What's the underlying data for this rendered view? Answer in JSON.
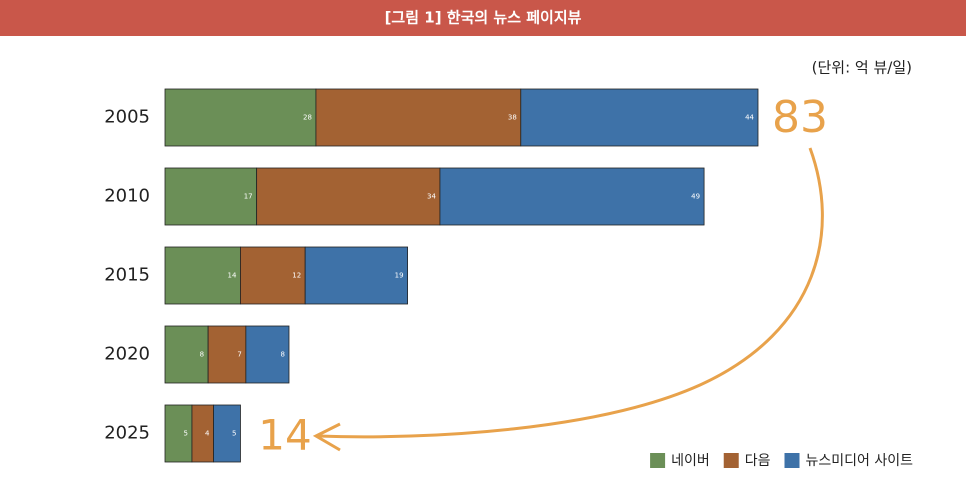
{
  "chart_data": {
    "type": "stacked-bar-horizontal",
    "title": "[그림 1] 한국의 뉴스 페이지뷰",
    "subtitle": "(단위: 억 뷰/일)",
    "categories": [
      "2005",
      "2010",
      "2015",
      "2020",
      "2025"
    ],
    "series": [
      {
        "name": "네이버",
        "color": "#6b8f57",
        "values": [
          28,
          17,
          14,
          8,
          5
        ]
      },
      {
        "name": "다음",
        "color": "#a36233",
        "values": [
          38,
          34,
          12,
          7,
          4
        ]
      },
      {
        "name": "뉴스미디어 사이트",
        "color": "#3e72a8",
        "values": [
          44,
          49,
          19,
          8,
          5
        ]
      }
    ],
    "annotations": [
      "83",
      "14"
    ],
    "annotation_color": "#e8a24b",
    "legend": "bottom-right"
  }
}
